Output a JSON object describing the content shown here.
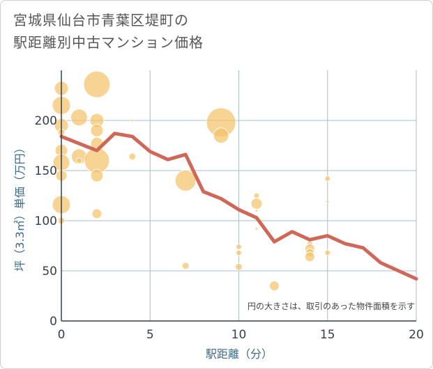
{
  "chart_data": {
    "type": "scatter",
    "title_lines": [
      "宮城県仙台市青葉区堤町の",
      "駅距離別中古マンション価格"
    ],
    "xlabel": "駅距離（分）",
    "ylabel": "坪（3.3㎡）単価（万円）",
    "note": "円の大きさは、取引のあった物件面積を示す",
    "xlim": [
      0,
      20
    ],
    "ylim": [
      0,
      250
    ],
    "x_ticks": [
      0,
      5,
      10,
      15,
      20
    ],
    "y_ticks": [
      0,
      50,
      100,
      150,
      200
    ],
    "grid": true,
    "colors": {
      "bubble": "#f5c36b",
      "line": "#d0685a",
      "grid": "#a9bccd",
      "axis": "#333f4b"
    },
    "points": [
      {
        "x": 0,
        "y": 232,
        "s": 10
      },
      {
        "x": 0,
        "y": 215,
        "s": 13
      },
      {
        "x": 0,
        "y": 195,
        "s": 10
      },
      {
        "x": 0,
        "y": 188,
        "s": 5
      },
      {
        "x": 0,
        "y": 170,
        "s": 9
      },
      {
        "x": 0,
        "y": 158,
        "s": 12
      },
      {
        "x": 0,
        "y": 145,
        "s": 8
      },
      {
        "x": 0,
        "y": 116,
        "s": 13
      },
      {
        "x": 0,
        "y": 100,
        "s": 5
      },
      {
        "x": 1,
        "y": 203,
        "s": 12
      },
      {
        "x": 1,
        "y": 164,
        "s": 11
      },
      {
        "x": 1,
        "y": 160,
        "s": 4
      },
      {
        "x": 2,
        "y": 236,
        "s": 19
      },
      {
        "x": 2,
        "y": 200,
        "s": 10
      },
      {
        "x": 2,
        "y": 190,
        "s": 9
      },
      {
        "x": 2,
        "y": 177,
        "s": 9
      },
      {
        "x": 2,
        "y": 160,
        "s": 18
      },
      {
        "x": 2,
        "y": 145,
        "s": 9
      },
      {
        "x": 2,
        "y": 107,
        "s": 7
      },
      {
        "x": 4,
        "y": 200,
        "s": 2
      },
      {
        "x": 4,
        "y": 164,
        "s": 5
      },
      {
        "x": 7,
        "y": 140,
        "s": 15
      },
      {
        "x": 7,
        "y": 55,
        "s": 5
      },
      {
        "x": 9,
        "y": 198,
        "s": 21
      },
      {
        "x": 9,
        "y": 185,
        "s": 11
      },
      {
        "x": 10,
        "y": 74,
        "s": 4
      },
      {
        "x": 10,
        "y": 68,
        "s": 4
      },
      {
        "x": 10,
        "y": 54,
        "s": 5
      },
      {
        "x": 11,
        "y": 125,
        "s": 4
      },
      {
        "x": 11,
        "y": 117,
        "s": 8
      },
      {
        "x": 11,
        "y": 110,
        "s": 2
      },
      {
        "x": 11,
        "y": 92,
        "s": 2
      },
      {
        "x": 12,
        "y": 35,
        "s": 7
      },
      {
        "x": 14,
        "y": 77,
        "s": 4
      },
      {
        "x": 14,
        "y": 72,
        "s": 7
      },
      {
        "x": 14,
        "y": 68,
        "s": 6
      },
      {
        "x": 14,
        "y": 64,
        "s": 7
      },
      {
        "x": 15,
        "y": 142,
        "s": 4
      },
      {
        "x": 15,
        "y": 119,
        "s": 2
      },
      {
        "x": 15,
        "y": 68,
        "s": 4
      }
    ],
    "line": {
      "x": [
        0,
        1,
        2,
        3,
        4,
        5,
        6,
        7,
        8,
        9,
        10,
        11,
        12,
        13,
        14,
        15,
        16,
        17,
        18,
        19,
        20
      ],
      "y": [
        184,
        177,
        170,
        187,
        184,
        169,
        161,
        166,
        129,
        122,
        111,
        103,
        79,
        89,
        81,
        85,
        77,
        73,
        58,
        50,
        42
      ]
    }
  }
}
